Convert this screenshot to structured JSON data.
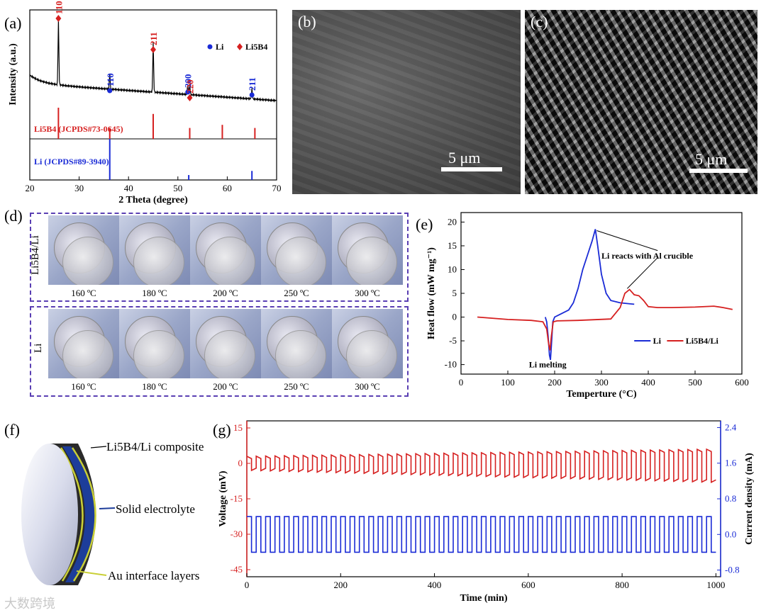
{
  "panels": {
    "a": {
      "label": "(a)",
      "chart_data": {
        "type": "line",
        "xlabel": "2 Theta (degree)",
        "ylabel": "Intensity (a.u.)",
        "xlim": [
          20,
          70
        ],
        "xticks": [
          "20",
          "30",
          "40",
          "50",
          "60",
          "70"
        ],
        "legend": [
          {
            "marker": "circle",
            "name": "Li",
            "color": "#1a2bd6"
          },
          {
            "marker": "diamond",
            "name": "Li5B4",
            "color": "#d62020"
          }
        ],
        "peaks": [
          {
            "x": 25.8,
            "label": "110",
            "phase": "Li5B4"
          },
          {
            "x": 36.2,
            "label": "110",
            "phase": "Li"
          },
          {
            "x": 45.0,
            "label": "211",
            "phase": "Li5B4"
          },
          {
            "x": 52.0,
            "label": "200",
            "phase": "Li"
          },
          {
            "x": 52.4,
            "label": "220",
            "phase": "Li5B4"
          },
          {
            "x": 65.0,
            "label": "211",
            "phase": "Li"
          }
        ],
        "ref_red": {
          "label": "Li5B4 (JCPDS#73-0645)",
          "x": [
            25.8,
            36.2,
            45.0,
            52.4,
            59.0,
            65.6
          ],
          "h": [
            1.0,
            0.35,
            0.8,
            0.35,
            0.45,
            0.35
          ]
        },
        "ref_blue": {
          "label": "Li (JCPDS#89-3940)",
          "x": [
            36.2,
            52.2,
            65.0
          ],
          "h": [
            1.0,
            0.12,
            0.22
          ]
        }
      }
    },
    "b": {
      "label": "(b)",
      "scale": "5 μm"
    },
    "c": {
      "label": "(c)",
      "scale": "5 μm"
    },
    "d": {
      "label": "(d)",
      "row1_label": "Li5B4/Li",
      "row2_label": "Li",
      "temps": [
        "160 ºC",
        "180 ºC",
        "200 ºC",
        "250 ºC",
        "300 ºC"
      ]
    },
    "e": {
      "label": "(e)",
      "chart_data": {
        "type": "line",
        "xlabel": "Temperture (°C)",
        "ylabel": "Heat flow (mW mg⁻¹)",
        "xlim": [
          0,
          600
        ],
        "ylim": [
          -12,
          22
        ],
        "xticks": [
          "0",
          "100",
          "200",
          "300",
          "400",
          "500",
          "600"
        ],
        "yticks": [
          "-10",
          "-5",
          "0",
          "5",
          "10",
          "15",
          "20"
        ],
        "annot_react": "Li reacts with Al crucible",
        "annot_melt": "Li melting",
        "series": [
          {
            "name": "Li",
            "color": "#1a2bd6",
            "x": [
              180,
              183,
              186,
              189,
              191,
              193,
              196,
              200,
              210,
              230,
              240,
              250,
              260,
              270,
              280,
              287,
              292,
              300,
              310,
              320,
              340,
              370
            ],
            "y": [
              0,
              -1,
              -4,
              -8,
              -9,
              -6,
              -1,
              0,
              0.5,
              1.5,
              3,
              6,
              10,
              13,
              16,
              18.5,
              15,
              9,
              5,
              3.5,
              3,
              2.7
            ]
          },
          {
            "name": "Li5B4/Li",
            "color": "#d62020",
            "x": [
              35,
              100,
              150,
              175,
              183,
              187,
              190,
              193,
              197,
              205,
              250,
              320,
              340,
              350,
              360,
              370,
              380,
              390,
              400,
              420,
              450,
              500,
              540,
              560,
              580
            ],
            "y": [
              0,
              -0.5,
              -0.7,
              -1,
              -2.5,
              -5.5,
              -7,
              -4,
              -1,
              -0.8,
              -0.7,
              -0.4,
              2,
              5,
              5.8,
              4.7,
              4.5,
              3.5,
              2.2,
              2,
              2,
              2.1,
              2.3,
              2,
              1.6
            ]
          }
        ]
      }
    },
    "f": {
      "label": "(f)",
      "callouts": [
        "Li5B4/Li composite",
        "Solid electrolyte",
        "Au interface layers"
      ]
    },
    "g": {
      "label": "(g)",
      "chart_data": {
        "type": "line",
        "xlabel": "Time (min)",
        "ylabel": "Voltage (mV)",
        "y2label": "Current density (mA)",
        "xlim": [
          0,
          1010
        ],
        "ylim": [
          -48,
          18
        ],
        "y2lim": [
          -0.95,
          2.55
        ],
        "xticks": [
          "0",
          "200",
          "400",
          "600",
          "800",
          "1000"
        ],
        "yticks": [
          "15",
          "0",
          "-15",
          "-30",
          "-45"
        ],
        "y2ticks": [
          "2.4",
          "1.6",
          "0.8",
          "0.0",
          "-0.8"
        ],
        "series": [
          {
            "name": "Voltage",
            "color": "#d62020",
            "period_min": 20,
            "cycles": 50,
            "high_start": 3,
            "high_end": 6,
            "low_start": -3,
            "low_end": -8
          },
          {
            "name": "Current density",
            "color": "#1a2bd6",
            "period_min": 20,
            "cycles": 50,
            "high": 0.4,
            "low": -0.4
          }
        ]
      }
    },
    "watermark": "大数跨境"
  }
}
